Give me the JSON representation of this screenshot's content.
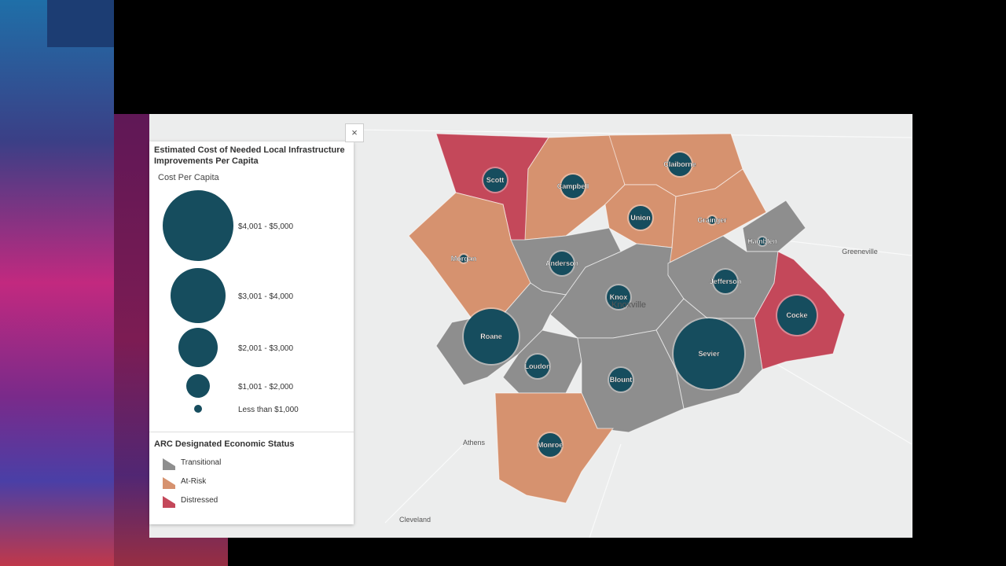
{
  "close": "×",
  "legend": {
    "title": "Estimated Cost of Needed Local Infrastructure Improvements Per Capita",
    "subtitle": "Cost Per Capita",
    "sizes": [
      "$4,001 - $5,000",
      "$3,001 - $4,000",
      "$2,001 - $3,000",
      "$1,001 - $2,000",
      "Less than $1,000"
    ],
    "status_title": "ARC Designated Economic Status",
    "statuses": [
      "Transitional",
      "At-Risk",
      "Distressed"
    ]
  },
  "counties": [
    "Scott",
    "Campbell",
    "Claiborne",
    "Union",
    "Grainger",
    "Hamblen",
    "Morgan",
    "Anderson",
    "Knox",
    "Jefferson",
    "Cocke",
    "Roane",
    "Sevier",
    "Loudon",
    "Blount",
    "Monroe"
  ],
  "places": [
    "Knoxville",
    "Greeneville",
    "Athens",
    "Cleveland"
  ]
}
